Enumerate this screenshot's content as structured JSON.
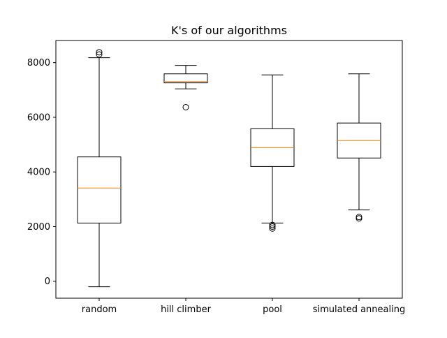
{
  "chart_data": {
    "type": "box",
    "title": "K's of our algorithms",
    "xlabel": "",
    "ylabel": "",
    "ylim": [
      -620,
      8810
    ],
    "yticks": [
      0,
      2000,
      4000,
      6000,
      8000
    ],
    "ytick_labels": [
      "0",
      "2000",
      "4000",
      "6000",
      "8000"
    ],
    "grid": false,
    "categories": [
      "random",
      "hill climber",
      "pool",
      "simulated annealing"
    ],
    "boxes": [
      {
        "whisker_low": -200,
        "q1": 2130,
        "median": 3410,
        "q3": 4550,
        "whisker_high": 8180,
        "outliers": [
          8300,
          8380
        ]
      },
      {
        "whisker_low": 7040,
        "q1": 7260,
        "median": 7310,
        "q3": 7590,
        "whisker_high": 7900,
        "outliers": [
          6370
        ]
      },
      {
        "whisker_low": 2130,
        "q1": 4200,
        "median": 4890,
        "q3": 5580,
        "whisker_high": 7550,
        "outliers": [
          1930,
          2000,
          2060
        ]
      },
      {
        "whisker_low": 2610,
        "q1": 4510,
        "median": 5150,
        "q3": 5790,
        "whisker_high": 7590,
        "outliers": [
          2300,
          2350
        ]
      }
    ],
    "colors": {
      "box": "#000000",
      "median": "#ff7f0e",
      "background": "#ffffff"
    }
  }
}
